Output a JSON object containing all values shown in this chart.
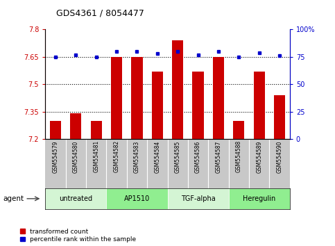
{
  "title": "GDS4361 / 8054477",
  "categories": [
    "GSM554579",
    "GSM554580",
    "GSM554581",
    "GSM554582",
    "GSM554583",
    "GSM554584",
    "GSM554585",
    "GSM554586",
    "GSM554587",
    "GSM554588",
    "GSM554589",
    "GSM554590"
  ],
  "red_values": [
    7.3,
    7.34,
    7.3,
    7.65,
    7.65,
    7.57,
    7.74,
    7.57,
    7.65,
    7.3,
    7.57,
    7.44
  ],
  "blue_values": [
    75,
    77,
    75,
    80,
    80,
    78,
    80,
    77,
    80,
    75,
    79,
    76
  ],
  "ylim_left": [
    7.2,
    7.8
  ],
  "ylim_right": [
    0,
    100
  ],
  "yticks_left": [
    7.2,
    7.35,
    7.5,
    7.65,
    7.8
  ],
  "yticks_right": [
    0,
    25,
    50,
    75,
    100
  ],
  "ytick_labels_left": [
    "7.2",
    "7.35",
    "7.5",
    "7.65",
    "7.8"
  ],
  "ytick_labels_right": [
    "0",
    "25",
    "50",
    "75",
    "100%"
  ],
  "hlines": [
    7.35,
    7.5,
    7.65
  ],
  "agent_groups": [
    {
      "label": "untreated",
      "start": 0,
      "end": 2
    },
    {
      "label": "AP1510",
      "start": 3,
      "end": 5
    },
    {
      "label": "TGF-alpha",
      "start": 6,
      "end": 8
    },
    {
      "label": "Heregulin",
      "start": 9,
      "end": 11
    }
  ],
  "group_colors": [
    "#d4f5d4",
    "#90ee90",
    "#d4f5d4",
    "#90ee90"
  ],
  "bar_color": "#CC0000",
  "dot_color": "#0000CC",
  "bar_bottom": 7.2,
  "background_plot": "#ffffff",
  "xlabel_bg": "#c8c8c8",
  "legend_items": [
    {
      "label": "transformed count",
      "color": "#CC0000"
    },
    {
      "label": "percentile rank within the sample",
      "color": "#0000CC"
    }
  ]
}
